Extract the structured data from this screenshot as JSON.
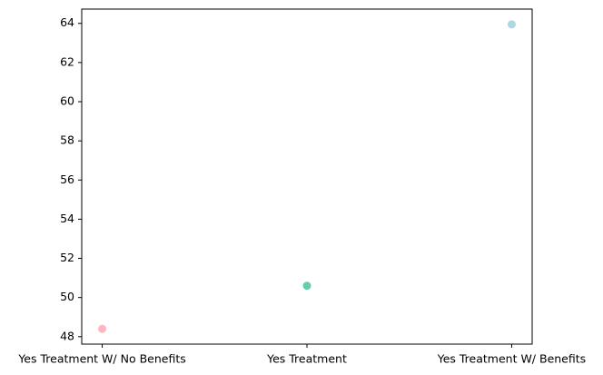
{
  "chart_data": {
    "type": "scatter",
    "title": "",
    "xlabel": "",
    "ylabel": "",
    "categories": [
      "Yes Treatment W/ No Benefits",
      "Yes Treatment",
      "Yes Treatment W/ Benefits"
    ],
    "values": [
      48.4,
      50.6,
      63.95
    ],
    "colors": [
      "#ffb6c1",
      "#66cdaa",
      "#add8e6"
    ],
    "ylim": [
      47.62,
      64.73
    ],
    "yticks": [
      48,
      50,
      52,
      54,
      56,
      58,
      60,
      62,
      64
    ],
    "grid": false,
    "legend": "none"
  }
}
